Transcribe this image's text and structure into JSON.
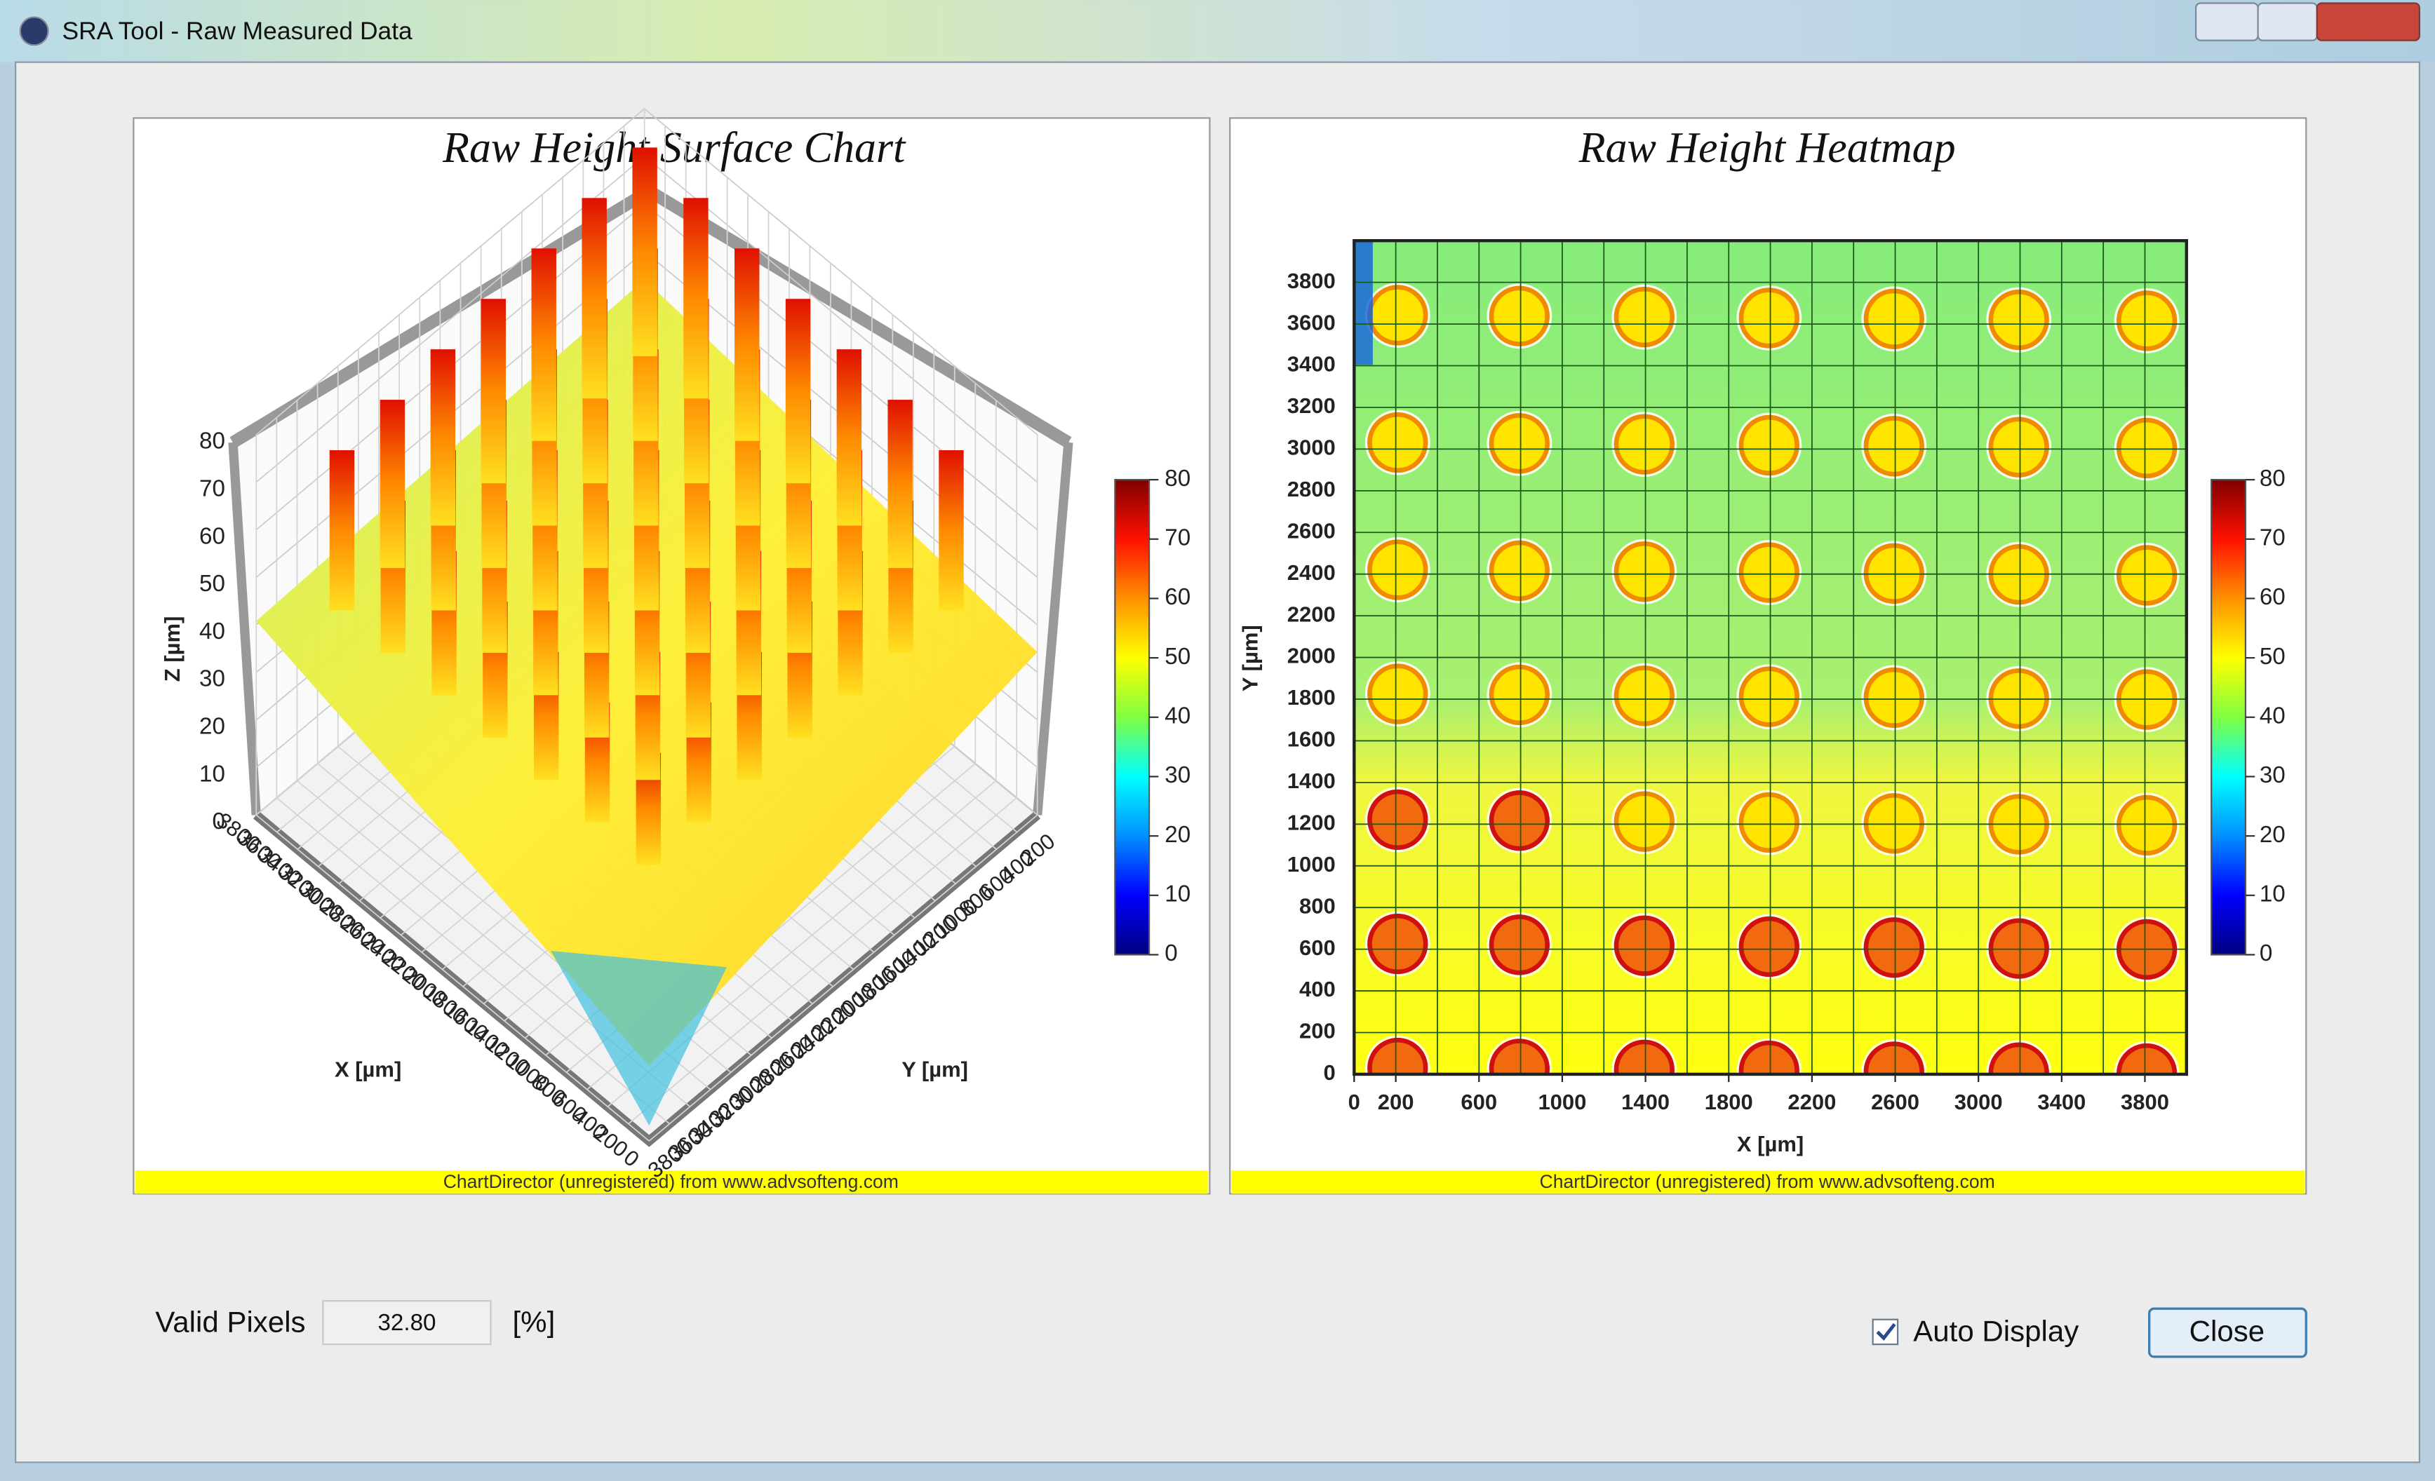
{
  "window": {
    "title": "SRA Tool - Raw Measured Data"
  },
  "surface_chart": {
    "title": "Raw Height Surface Chart",
    "x_label": "X [µm]",
    "y_label": "Y [µm]",
    "z_label": "Z [µm]",
    "xlim": [
      0,
      3800
    ],
    "ylim": [
      0,
      3800
    ],
    "zlim": [
      0,
      80
    ],
    "xticks": [
      0,
      200,
      400,
      600,
      800,
      1000,
      1200,
      1400,
      1600,
      1800,
      2000,
      2200,
      2400,
      2600,
      2800,
      3000,
      3200,
      3400,
      3600,
      3800
    ],
    "yticks": [
      200,
      400,
      600,
      800,
      1000,
      1200,
      1400,
      1600,
      1800,
      2000,
      2200,
      2400,
      2600,
      2800,
      3000,
      3200,
      3400,
      3600,
      3800
    ],
    "zticks": [
      0,
      10,
      20,
      30,
      40,
      50,
      60,
      70,
      80
    ],
    "colorbar_lim": [
      0,
      80
    ],
    "colorbar_ticks": [
      0,
      10,
      20,
      30,
      40,
      50,
      60,
      70,
      80
    ],
    "footer": "ChartDirector (unregistered) from www.advsofteng.com"
  },
  "heatmap": {
    "title": "Raw Height Heatmap",
    "x_label": "X [µm]",
    "y_label": "Y [µm]",
    "xlim": [
      0,
      4000
    ],
    "ylim": [
      0,
      4000
    ],
    "xticks": [
      0,
      200,
      600,
      1000,
      1400,
      1800,
      2200,
      2600,
      3000,
      3400,
      3800
    ],
    "xgrid": [
      200,
      400,
      600,
      800,
      1000,
      1200,
      1400,
      1600,
      1800,
      2000,
      2200,
      2400,
      2600,
      2800,
      3000,
      3200,
      3400,
      3600,
      3800
    ],
    "yticks": [
      0,
      200,
      400,
      600,
      800,
      1000,
      1200,
      1400,
      1600,
      1800,
      2000,
      2200,
      2400,
      2600,
      2800,
      3000,
      3200,
      3400,
      3600,
      3800
    ],
    "colorbar_lim": [
      0,
      80
    ],
    "colorbar_ticks": [
      0,
      10,
      20,
      30,
      40,
      50,
      60,
      70,
      80
    ],
    "footer": "ChartDirector (unregistered) from www.advsofteng.com"
  },
  "controls": {
    "valid_pixels_label": "Valid Pixels",
    "valid_pixels_value": "32.80",
    "valid_pixels_unit": "[%]",
    "auto_display": "Auto Display",
    "auto_display_checked": true,
    "close": "Close"
  }
}
